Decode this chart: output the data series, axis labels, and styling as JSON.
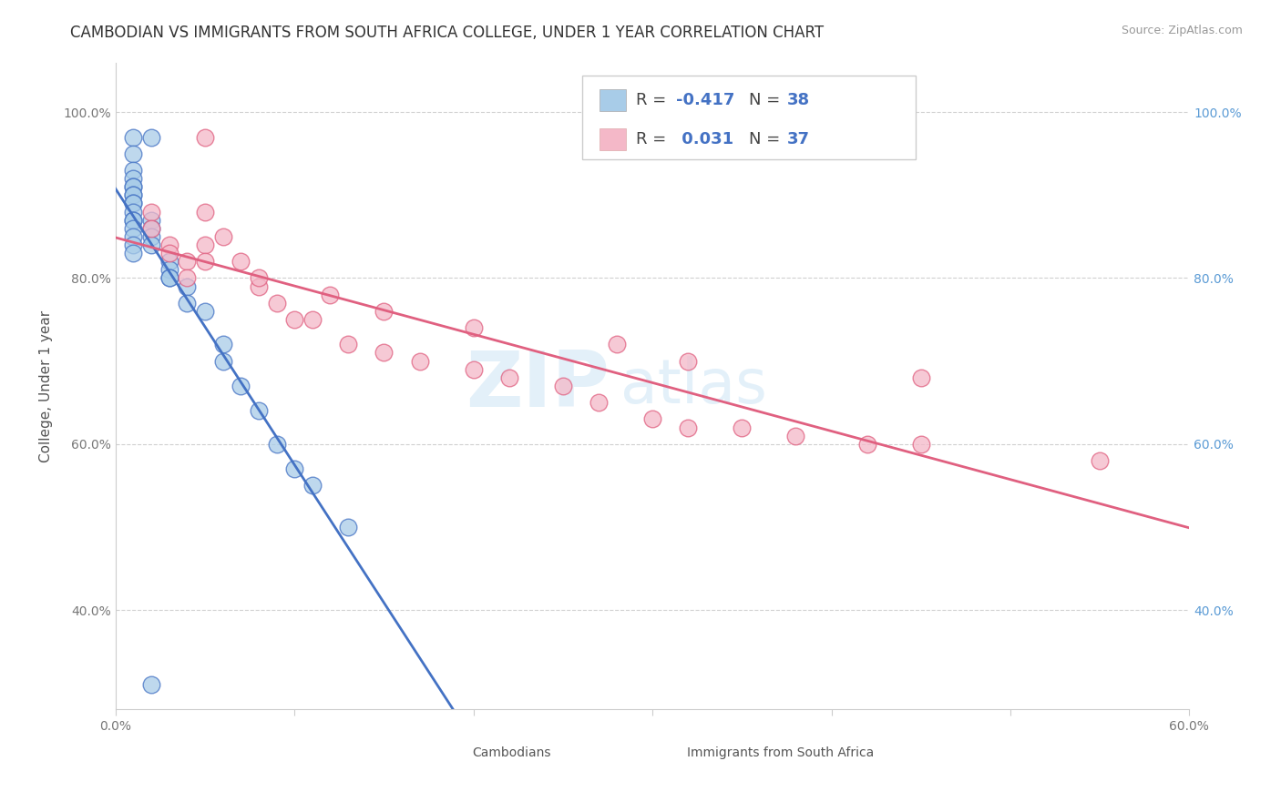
{
  "title": "CAMBODIAN VS IMMIGRANTS FROM SOUTH AFRICA COLLEGE, UNDER 1 YEAR CORRELATION CHART",
  "source_text": "Source: ZipAtlas.com",
  "ylabel": "College, Under 1 year",
  "xlim": [
    0.0,
    0.6
  ],
  "ylim": [
    0.28,
    1.06
  ],
  "x_tick_positions": [
    0.0,
    0.1,
    0.2,
    0.3,
    0.4,
    0.5,
    0.6
  ],
  "x_tick_labels": [
    "0.0%",
    "",
    "",
    "",
    "",
    "",
    "60.0%"
  ],
  "y_tick_positions": [
    0.4,
    0.6,
    0.8,
    1.0
  ],
  "y_tick_labels": [
    "40.0%",
    "60.0%",
    "80.0%",
    "100.0%"
  ],
  "r_cambodian": -0.417,
  "n_cambodian": 38,
  "r_south_africa": 0.031,
  "n_south_africa": 37,
  "color_cambodian": "#a8cce8",
  "color_south_africa": "#f4b8c8",
  "line_color_cambodian": "#4472c4",
  "line_color_south_africa": "#e06080",
  "watermark_zip": "ZIP",
  "watermark_atlas": "atlas",
  "background_color": "#ffffff",
  "grid_color": "#d0d0d0",
  "cambodian_x": [
    0.02,
    0.01,
    0.01,
    0.01,
    0.01,
    0.01,
    0.01,
    0.01,
    0.01,
    0.01,
    0.01,
    0.01,
    0.01,
    0.01,
    0.01,
    0.01,
    0.01,
    0.01,
    0.02,
    0.02,
    0.02,
    0.02,
    0.03,
    0.03,
    0.03,
    0.03,
    0.04,
    0.04,
    0.05,
    0.06,
    0.06,
    0.07,
    0.08,
    0.09,
    0.1,
    0.11,
    0.13,
    0.02
  ],
  "cambodian_y": [
    0.97,
    0.97,
    0.95,
    0.93,
    0.92,
    0.91,
    0.91,
    0.9,
    0.9,
    0.89,
    0.89,
    0.88,
    0.87,
    0.87,
    0.86,
    0.85,
    0.84,
    0.83,
    0.87,
    0.86,
    0.85,
    0.84,
    0.82,
    0.81,
    0.8,
    0.8,
    0.79,
    0.77,
    0.76,
    0.72,
    0.7,
    0.67,
    0.64,
    0.6,
    0.57,
    0.55,
    0.5,
    0.31
  ],
  "south_africa_x": [
    0.02,
    0.02,
    0.03,
    0.03,
    0.04,
    0.04,
    0.05,
    0.05,
    0.05,
    0.06,
    0.07,
    0.08,
    0.09,
    0.1,
    0.11,
    0.13,
    0.15,
    0.17,
    0.2,
    0.22,
    0.25,
    0.27,
    0.3,
    0.32,
    0.35,
    0.38,
    0.42,
    0.45,
    0.05,
    0.08,
    0.12,
    0.15,
    0.2,
    0.28,
    0.32,
    0.45,
    0.55
  ],
  "south_africa_y": [
    0.88,
    0.86,
    0.84,
    0.83,
    0.82,
    0.8,
    0.88,
    0.84,
    0.82,
    0.85,
    0.82,
    0.79,
    0.77,
    0.75,
    0.75,
    0.72,
    0.71,
    0.7,
    0.69,
    0.68,
    0.67,
    0.65,
    0.63,
    0.62,
    0.62,
    0.61,
    0.6,
    0.6,
    0.97,
    0.8,
    0.78,
    0.76,
    0.74,
    0.72,
    0.7,
    0.68,
    0.58
  ],
  "title_fontsize": 12,
  "axis_label_fontsize": 11,
  "tick_fontsize": 10,
  "legend_fontsize": 13,
  "source_fontsize": 9
}
